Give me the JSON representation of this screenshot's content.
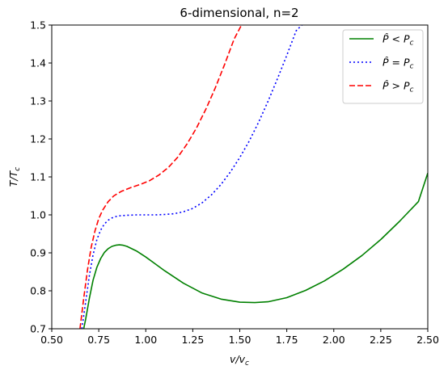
{
  "chart_data": {
    "type": "line",
    "title": "6-dimensional, n=2",
    "xlabel": "v/v",
    "xlabel_sub": "c",
    "ylabel": "T/T",
    "ylabel_sub": "c",
    "xlim": [
      0.5,
      2.5
    ],
    "ylim": [
      0.7,
      1.5
    ],
    "x_ticks": [
      "0.50",
      "0.75",
      "1.00",
      "1.25",
      "1.50",
      "1.75",
      "2.00",
      "2.25",
      "2.50"
    ],
    "x_tick_values": [
      0.5,
      0.75,
      1.0,
      1.25,
      1.5,
      1.75,
      2.0,
      2.25,
      2.5
    ],
    "y_ticks": [
      "0.7",
      "0.8",
      "0.9",
      "1.0",
      "1.1",
      "1.2",
      "1.3",
      "1.4",
      "1.5"
    ],
    "y_tick_values": [
      0.7,
      0.8,
      0.9,
      1.0,
      1.1,
      1.2,
      1.3,
      1.4,
      1.5
    ],
    "grid": false,
    "legend_position": "top-right",
    "series": [
      {
        "name": "P̂ < P",
        "name_sub": "c",
        "color": "#008000",
        "style": "solid",
        "x": [
          0.67,
          0.68,
          0.7,
          0.72,
          0.74,
          0.76,
          0.78,
          0.8,
          0.82,
          0.84,
          0.86,
          0.88,
          0.9,
          0.95,
          1.0,
          1.05,
          1.1,
          1.2,
          1.3,
          1.4,
          1.5,
          1.58,
          1.65,
          1.75,
          1.85,
          1.95,
          2.05,
          2.15,
          2.25,
          2.35,
          2.45,
          2.5
        ],
        "y": [
          0.7,
          0.725,
          0.78,
          0.828,
          0.862,
          0.885,
          0.901,
          0.911,
          0.917,
          0.92,
          0.921,
          0.92,
          0.917,
          0.905,
          0.889,
          0.871,
          0.853,
          0.82,
          0.794,
          0.778,
          0.77,
          0.769,
          0.771,
          0.782,
          0.801,
          0.826,
          0.857,
          0.893,
          0.935,
          0.983,
          1.035,
          1.11
        ]
      },
      {
        "name": "P̂ = P",
        "name_sub": "c",
        "color": "#0000ff",
        "style": "dotted",
        "x": [
          0.66,
          0.68,
          0.7,
          0.72,
          0.74,
          0.76,
          0.78,
          0.8,
          0.82,
          0.85,
          0.9,
          0.95,
          1.0,
          1.05,
          1.1,
          1.15,
          1.2,
          1.25,
          1.3,
          1.35,
          1.4,
          1.45,
          1.5,
          1.55,
          1.6,
          1.65,
          1.7,
          1.75,
          1.8,
          1.85
        ],
        "y": [
          0.7,
          0.77,
          0.84,
          0.895,
          0.935,
          0.96,
          0.976,
          0.986,
          0.992,
          0.997,
          0.999,
          1.0,
          1.0,
          1.0,
          1.001,
          1.003,
          1.008,
          1.017,
          1.032,
          1.053,
          1.08,
          1.113,
          1.151,
          1.194,
          1.244,
          1.299,
          1.358,
          1.42,
          1.485,
          1.51
        ]
      },
      {
        "name": "P̂ > P",
        "name_sub": "c",
        "color": "#ff0000",
        "style": "dashed",
        "x": [
          0.65,
          0.67,
          0.69,
          0.71,
          0.73,
          0.75,
          0.77,
          0.8,
          0.83,
          0.87,
          0.92,
          0.97,
          1.02,
          1.07,
          1.12,
          1.17,
          1.22,
          1.27,
          1.32,
          1.37,
          1.42,
          1.47,
          1.52
        ],
        "y": [
          0.7,
          0.78,
          0.855,
          0.915,
          0.958,
          0.99,
          1.012,
          1.035,
          1.05,
          1.062,
          1.072,
          1.08,
          1.09,
          1.105,
          1.125,
          1.152,
          1.187,
          1.229,
          1.279,
          1.335,
          1.397,
          1.463,
          1.51
        ]
      }
    ]
  }
}
